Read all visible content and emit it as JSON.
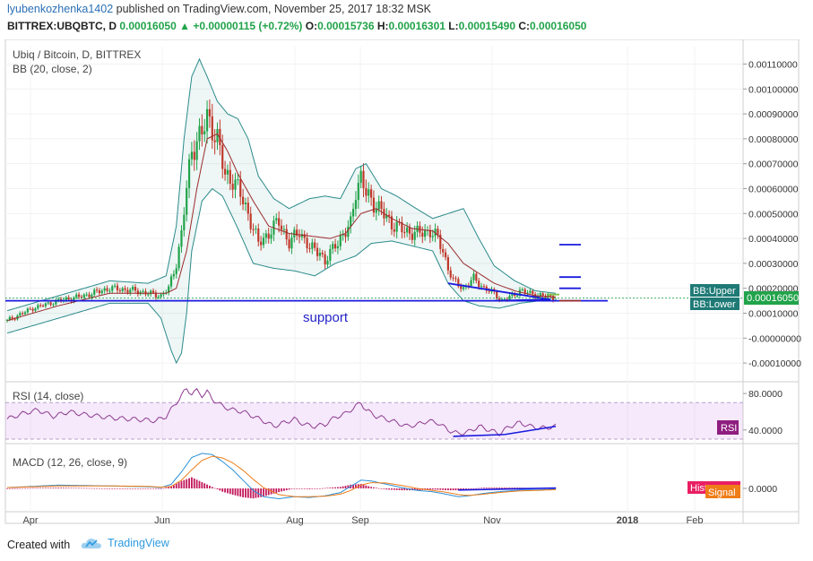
{
  "header": {
    "user": "lyubenkozhenka1402",
    "published": "published on TradingView.com, November 25, 2017 18:32 MSK",
    "symbol": "BITTREX:UBQBTC, D",
    "price": "0.00016050",
    "change": "+0.00000115 (+0.72%)",
    "o_label": "O:",
    "o": "0.00015736",
    "h_label": "H:",
    "h": "0.00016301",
    "l_label": "L:",
    "l": "0.00015490",
    "c_label": "C:",
    "c": "0.00016050"
  },
  "footer": {
    "created_with": "Created with",
    "brand": "TradingView"
  },
  "colors": {
    "up": "#21a34a",
    "down": "#c0392b",
    "bb_band": "#2b8a8a",
    "bb_mid": "#9b2b2b",
    "rsi": "#8e3a8e",
    "macd": "#2a8fd6",
    "signal": "#ef7d18",
    "hist": "#c2185b",
    "drawing": "#1a1adf"
  },
  "chart_data": [
    {
      "type": "candlestick",
      "title": "Ubiq / Bitcoin, D, BITTREX",
      "indicator": "BB (20, close, 2)",
      "x_labels": [
        "Apr",
        "Jun",
        "Aug",
        "Sep",
        "Nov",
        "2018",
        "Feb"
      ],
      "y_ticks": [
        "0.00110000",
        "0.00100000",
        "0.00090000",
        "0.00080000",
        "0.00070000",
        "0.00060000",
        "0.00050000",
        "0.00040000",
        "0.00030000",
        "0.00020000",
        "0.00010000",
        "-0.00000000",
        "-0.00010000"
      ],
      "ylim": [
        -0.00015,
        0.00117
      ],
      "last_price": "0.00016050",
      "tags": {
        "upper": "BB:Upper",
        "lower": "BB:Lower"
      },
      "annotation": "support",
      "support_level": 0.00015,
      "close_path": [
        [
          0,
          7e-05
        ],
        [
          10,
          0.00012
        ],
        [
          20,
          0.00015
        ],
        [
          30,
          0.00017
        ],
        [
          40,
          0.0002
        ],
        [
          50,
          0.00019
        ],
        [
          55,
          0.00018
        ],
        [
          60,
          0.00017
        ],
        [
          63,
          0.0002
        ],
        [
          66,
          0.0003
        ],
        [
          68,
          0.00042
        ],
        [
          70,
          0.0006
        ],
        [
          72,
          0.00075
        ],
        [
          74,
          0.0008
        ],
        [
          76,
          0.00082
        ],
        [
          78,
          0.00088
        ],
        [
          80,
          0.00085
        ],
        [
          82,
          0.0008
        ],
        [
          85,
          0.00065
        ],
        [
          88,
          0.00064
        ],
        [
          90,
          0.0006
        ],
        [
          94,
          0.0005
        ],
        [
          98,
          0.00038
        ],
        [
          102,
          0.00042
        ],
        [
          106,
          0.00047
        ],
        [
          110,
          0.00038
        ],
        [
          114,
          0.00043
        ],
        [
          118,
          0.00036
        ],
        [
          122,
          0.00035
        ],
        [
          124,
          0.0003
        ],
        [
          128,
          0.00038
        ],
        [
          132,
          0.00042
        ],
        [
          134,
          0.00046
        ],
        [
          136,
          0.0006
        ],
        [
          138,
          0.00064
        ],
        [
          140,
          0.00058
        ],
        [
          145,
          0.00052
        ],
        [
          150,
          0.00046
        ],
        [
          155,
          0.00043
        ],
        [
          160,
          0.00042
        ],
        [
          165,
          0.00043
        ],
        [
          168,
          0.0004
        ],
        [
          170,
          0.00035
        ],
        [
          172,
          0.00028
        ],
        [
          174,
          0.00023
        ],
        [
          178,
          0.0002
        ],
        [
          182,
          0.00024
        ],
        [
          186,
          0.0002
        ],
        [
          190,
          0.00018
        ],
        [
          193,
          0.00015
        ],
        [
          197,
          0.00017
        ],
        [
          200,
          0.00019
        ],
        [
          204,
          0.00018
        ],
        [
          208,
          0.00017
        ],
        [
          212,
          0.000165
        ],
        [
          214,
          0.00016
        ]
      ],
      "bb_upper_path": [
        [
          0,
          0.00011
        ],
        [
          20,
          0.00017
        ],
        [
          40,
          0.00023
        ],
        [
          55,
          0.00022
        ],
        [
          62,
          0.00025
        ],
        [
          66,
          0.00045
        ],
        [
          69,
          0.0008
        ],
        [
          72,
          0.00105
        ],
        [
          75,
          0.00112
        ],
        [
          78,
          0.00105
        ],
        [
          82,
          0.00095
        ],
        [
          86,
          0.0009
        ],
        [
          90,
          0.00088
        ],
        [
          94,
          0.0008
        ],
        [
          98,
          0.00065
        ],
        [
          104,
          0.00056
        ],
        [
          110,
          0.00052
        ],
        [
          118,
          0.00056
        ],
        [
          124,
          0.00057
        ],
        [
          130,
          0.00056
        ],
        [
          136,
          0.00068
        ],
        [
          140,
          0.0007
        ],
        [
          146,
          0.0006
        ],
        [
          152,
          0.00057
        ],
        [
          158,
          0.00053
        ],
        [
          166,
          0.00048
        ],
        [
          172,
          0.0005
        ],
        [
          178,
          0.00052
        ],
        [
          184,
          0.0004
        ],
        [
          190,
          0.00029
        ],
        [
          198,
          0.00023
        ],
        [
          206,
          0.00019
        ],
        [
          214,
          0.00018
        ]
      ],
      "bb_lower_path": [
        [
          0,
          2e-05
        ],
        [
          20,
          8e-05
        ],
        [
          40,
          0.00014
        ],
        [
          55,
          0.00014
        ],
        [
          60,
          8e-05
        ],
        [
          64,
          -5e-05
        ],
        [
          66,
          -0.0001
        ],
        [
          68,
          -6e-05
        ],
        [
          70,
          0.0001
        ],
        [
          72,
          0.00035
        ],
        [
          76,
          0.00055
        ],
        [
          80,
          0.0006
        ],
        [
          84,
          0.00057
        ],
        [
          90,
          0.00044
        ],
        [
          96,
          0.0003
        ],
        [
          104,
          0.00028
        ],
        [
          112,
          0.00027
        ],
        [
          120,
          0.00025
        ],
        [
          128,
          0.0003
        ],
        [
          136,
          0.00033
        ],
        [
          142,
          0.00038
        ],
        [
          150,
          0.00039
        ],
        [
          158,
          0.00037
        ],
        [
          166,
          0.00035
        ],
        [
          172,
          0.00022
        ],
        [
          178,
          0.00015
        ],
        [
          184,
          0.00013
        ],
        [
          192,
          0.00012
        ],
        [
          200,
          0.00014
        ],
        [
          208,
          0.00015
        ],
        [
          214,
          0.00015
        ]
      ],
      "bb_mid_path": [
        [
          0,
          7e-05
        ],
        [
          20,
          0.00013
        ],
        [
          40,
          0.00018
        ],
        [
          55,
          0.00018
        ],
        [
          62,
          0.00018
        ],
        [
          66,
          0.0002
        ],
        [
          70,
          0.00035
        ],
        [
          74,
          0.0006
        ],
        [
          78,
          0.0008
        ],
        [
          82,
          0.00082
        ],
        [
          86,
          0.00075
        ],
        [
          90,
          0.00066
        ],
        [
          96,
          0.00055
        ],
        [
          102,
          0.00045
        ],
        [
          110,
          0.00042
        ],
        [
          118,
          0.00041
        ],
        [
          126,
          0.0004
        ],
        [
          132,
          0.00042
        ],
        [
          138,
          0.0005
        ],
        [
          144,
          0.00052
        ],
        [
          150,
          0.00048
        ],
        [
          158,
          0.00044
        ],
        [
          166,
          0.00043
        ],
        [
          172,
          0.00038
        ],
        [
          178,
          0.0003
        ],
        [
          184,
          0.00026
        ],
        [
          190,
          0.00022
        ],
        [
          198,
          0.00019
        ],
        [
          206,
          0.00017
        ],
        [
          214,
          0.000165
        ]
      ]
    },
    {
      "type": "line",
      "title": "RSI (14, close)",
      "tag": "RSI",
      "y_ticks": [
        "80.0000",
        "40.0000"
      ],
      "ylim": [
        28,
        88
      ],
      "band": [
        30,
        70
      ],
      "series": [
        {
          "values": [
            [
              0,
              52
            ],
            [
              6,
              58
            ],
            [
              12,
              62
            ],
            [
              18,
              55
            ],
            [
              24,
              60
            ],
            [
              30,
              57
            ],
            [
              36,
              55
            ],
            [
              42,
              53
            ],
            [
              48,
              52
            ],
            [
              54,
              51
            ],
            [
              58,
              50
            ],
            [
              62,
              55
            ],
            [
              66,
              70
            ],
            [
              68,
              78
            ],
            [
              70,
              85
            ],
            [
              72,
              80
            ],
            [
              74,
              83
            ],
            [
              76,
              78
            ],
            [
              78,
              82
            ],
            [
              80,
              74
            ],
            [
              84,
              66
            ],
            [
              88,
              62
            ],
            [
              92,
              60
            ],
            [
              96,
              55
            ],
            [
              100,
              50
            ],
            [
              104,
              44
            ],
            [
              108,
              48
            ],
            [
              112,
              52
            ],
            [
              116,
              46
            ],
            [
              120,
              44
            ],
            [
              124,
              46
            ],
            [
              128,
              54
            ],
            [
              132,
              58
            ],
            [
              136,
              66
            ],
            [
              138,
              70
            ],
            [
              140,
              62
            ],
            [
              144,
              55
            ],
            [
              148,
              52
            ],
            [
              152,
              48
            ],
            [
              156,
              44
            ],
            [
              160,
              46
            ],
            [
              164,
              50
            ],
            [
              168,
              48
            ],
            [
              172,
              40
            ],
            [
              176,
              36
            ],
            [
              180,
              38
            ],
            [
              184,
              44
            ],
            [
              188,
              40
            ],
            [
              192,
              36
            ],
            [
              196,
              44
            ],
            [
              200,
              48
            ],
            [
              204,
              44
            ],
            [
              208,
              42
            ],
            [
              212,
              43
            ],
            [
              214,
              44
            ]
          ]
        }
      ]
    },
    {
      "type": "line",
      "title": "MACD (12, 26, close, 9)",
      "tags": {
        "hist": "Histogram",
        "signal": "Signal"
      },
      "y_ticks": [
        "0.0000"
      ],
      "ylim": [
        -5e-05,
        0.0001
      ],
      "series": [
        {
          "values": [
            [
              0,
              2e-06
            ],
            [
              20,
              8e-06
            ],
            [
              40,
              6e-06
            ],
            [
              55,
              4e-06
            ],
            [
              60,
              2e-06
            ],
            [
              64,
              1e-05
            ],
            [
              68,
              4e-05
            ],
            [
              72,
              7.5e-05
            ],
            [
              76,
              8.5e-05
            ],
            [
              80,
              8.2e-05
            ],
            [
              84,
              6.5e-05
            ],
            [
              88,
              4.5e-05
            ],
            [
              92,
              2e-05
            ],
            [
              96,
              -5e-06
            ],
            [
              100,
              -2e-05
            ],
            [
              106,
              -2.5e-05
            ],
            [
              112,
              -2e-05
            ],
            [
              118,
              -2.2e-05
            ],
            [
              124,
              -1.8e-05
            ],
            [
              130,
              -1e-05
            ],
            [
              134,
              5e-06
            ],
            [
              138,
              2e-05
            ],
            [
              142,
              1.8e-05
            ],
            [
              148,
              1e-05
            ],
            [
              154,
              2e-06
            ],
            [
              160,
              -5e-06
            ],
            [
              166,
              -8e-06
            ],
            [
              172,
              -1.5e-05
            ],
            [
              176,
              -2e-05
            ],
            [
              180,
              -1.8e-05
            ],
            [
              186,
              -1.2e-05
            ],
            [
              192,
              -8e-06
            ],
            [
              200,
              -4e-06
            ],
            [
              206,
              -4e-06
            ],
            [
              214,
              -2e-06
            ]
          ]
        },
        {
          "values": [
            [
              0,
              2e-06
            ],
            [
              20,
              6e-06
            ],
            [
              40,
              6e-06
            ],
            [
              55,
              5e-06
            ],
            [
              60,
              3e-06
            ],
            [
              64,
              5e-06
            ],
            [
              68,
              2e-05
            ],
            [
              72,
              4.5e-05
            ],
            [
              76,
              6.8e-05
            ],
            [
              80,
              7.8e-05
            ],
            [
              84,
              7.4e-05
            ],
            [
              88,
              6.2e-05
            ],
            [
              92,
              4.4e-05
            ],
            [
              96,
              2.2e-05
            ],
            [
              100,
              2e-06
            ],
            [
              106,
              -1.5e-05
            ],
            [
              112,
              -2e-05
            ],
            [
              118,
              -2e-05
            ],
            [
              124,
              -1.9e-05
            ],
            [
              130,
              -1.4e-05
            ],
            [
              134,
              -5e-06
            ],
            [
              138,
              8e-06
            ],
            [
              142,
              1.4e-05
            ],
            [
              148,
              1.3e-05
            ],
            [
              154,
              7e-06
            ],
            [
              160,
              0.0
            ],
            [
              166,
              -5e-06
            ],
            [
              172,
              -1e-05
            ],
            [
              176,
              -1.5e-05
            ],
            [
              180,
              -1.7e-05
            ],
            [
              186,
              -1.4e-05
            ],
            [
              192,
              -1e-05
            ],
            [
              200,
              -6e-06
            ],
            [
              206,
              -5e-06
            ],
            [
              214,
              -3e-06
            ]
          ]
        }
      ]
    }
  ]
}
